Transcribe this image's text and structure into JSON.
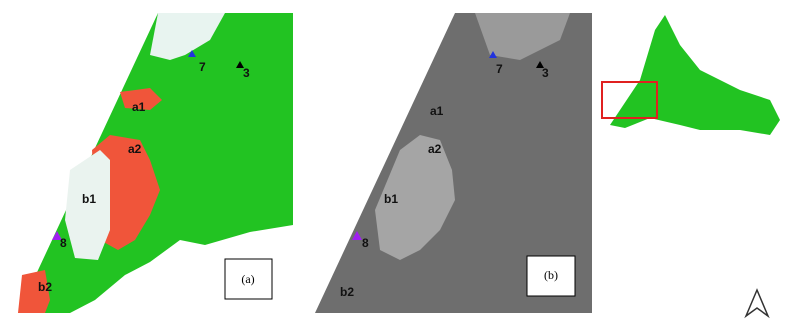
{
  "panels": [
    {
      "caption": "(a)",
      "labels": [
        "7",
        "3",
        "a1",
        "a2",
        "b1",
        "8",
        "b2"
      ]
    },
    {
      "caption": "(b)",
      "labels": [
        "7",
        "3",
        "a1",
        "a2",
        "b1",
        "8",
        "b2"
      ]
    }
  ]
}
